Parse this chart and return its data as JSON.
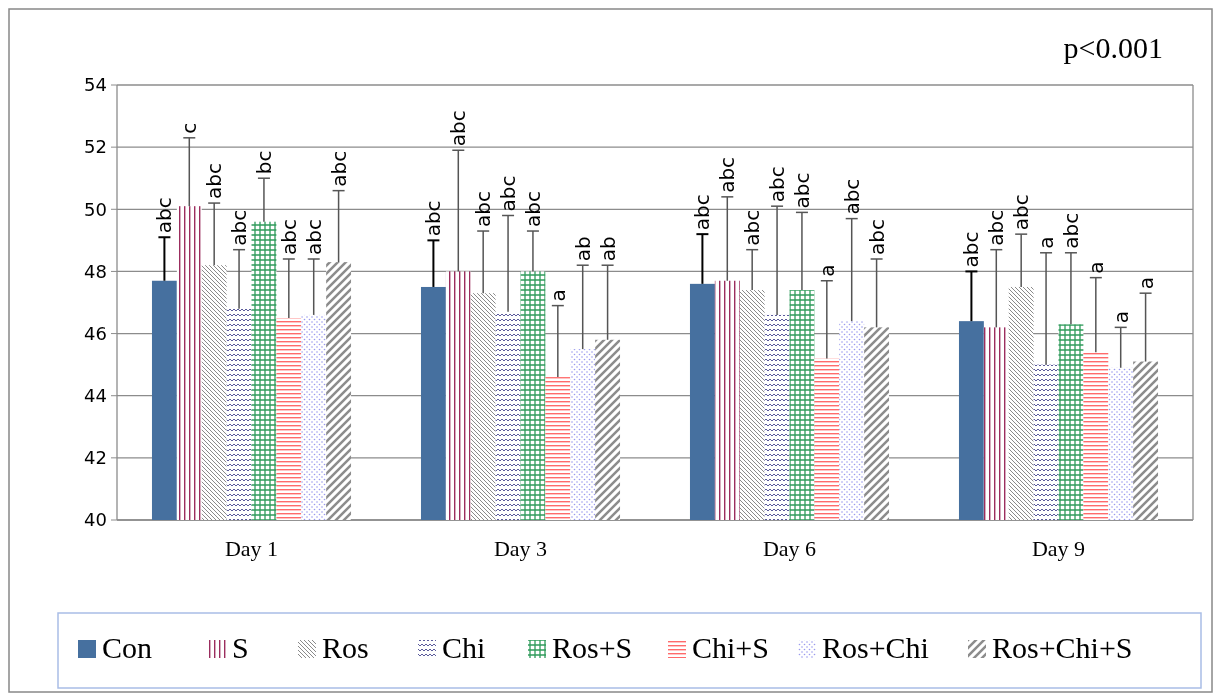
{
  "chart_data": {
    "type": "bar",
    "annotations": [
      "abc",
      "abc",
      "abc",
      "abc",
      "c",
      "abc",
      "abc",
      "abc",
      "abc",
      "abc",
      "abc",
      "abc",
      "abc",
      "abc",
      "abc",
      "a",
      "bc",
      "abc",
      "abc",
      "abc",
      "abc",
      "a",
      "a",
      "a",
      "abc",
      "ab",
      "abc",
      "a",
      "abc",
      "ab",
      "abc",
      "a",
      "p<0.001"
    ],
    "categories": [
      "Day 1",
      "Day 3",
      "Day 6",
      "Day 9"
    ],
    "series": [
      {
        "name": "Con",
        "color": "#46709f",
        "values": [
          47.7,
          47.5,
          47.6,
          46.4
        ],
        "errors": [
          [
            47.7,
            49.1
          ],
          [
            47.5,
            49.0
          ],
          [
            47.6,
            49.2
          ],
          [
            46.4,
            48.0
          ]
        ]
      },
      {
        "name": "S",
        "color": "#9b2d5e",
        "values": [
          50.1,
          48.0,
          47.7,
          46.2
        ],
        "errors": [
          [
            50.1,
            52.3
          ],
          [
            48.0,
            51.9
          ],
          [
            47.7,
            50.4
          ],
          [
            46.2,
            48.7
          ]
        ]
      },
      {
        "name": "Ros",
        "color": "#8a8a8a",
        "values": [
          48.2,
          47.3,
          47.4,
          47.5
        ],
        "errors": [
          [
            48.2,
            50.2
          ],
          [
            47.3,
            49.3
          ],
          [
            47.4,
            48.7
          ],
          [
            47.5,
            49.2
          ]
        ]
      },
      {
        "name": "Chi",
        "color": "#5b5b9b",
        "values": [
          46.8,
          46.7,
          46.6,
          45.0
        ],
        "errors": [
          [
            46.8,
            48.7
          ],
          [
            46.7,
            49.8
          ],
          [
            46.6,
            50.1
          ],
          [
            45.0,
            48.6
          ]
        ]
      },
      {
        "name": "Ros+S",
        "color": "#2e9a5a",
        "values": [
          49.6,
          48.0,
          47.4,
          46.3
        ],
        "errors": [
          [
            49.6,
            51.0
          ],
          [
            48.0,
            49.3
          ],
          [
            47.4,
            49.9
          ],
          [
            46.3,
            48.6
          ]
        ]
      },
      {
        "name": "Chi+S",
        "color": "#ff6b6b",
        "values": [
          46.5,
          44.6,
          45.2,
          45.4
        ],
        "errors": [
          [
            46.5,
            48.4
          ],
          [
            44.6,
            46.9
          ],
          [
            45.2,
            47.7
          ],
          [
            45.4,
            47.8
          ]
        ]
      },
      {
        "name": "Ros+Chi",
        "color": "#9a9aee",
        "values": [
          46.6,
          45.5,
          46.4,
          44.9
        ],
        "errors": [
          [
            46.6,
            48.4
          ],
          [
            45.5,
            48.2
          ],
          [
            46.4,
            49.7
          ],
          [
            44.9,
            46.2
          ]
        ]
      },
      {
        "name": "Ros+Chi+S",
        "color": "#8c8c8c",
        "values": [
          48.3,
          45.8,
          46.2,
          45.1
        ],
        "errors": [
          [
            48.3,
            50.6
          ],
          [
            45.8,
            48.2
          ],
          [
            46.2,
            48.4
          ],
          [
            45.1,
            47.3
          ]
        ]
      }
    ],
    "ylim": [
      40,
      54
    ],
    "yticks": [
      40,
      42,
      44,
      46,
      48,
      50,
      52,
      54
    ],
    "grid": "y",
    "legend": "bottom"
  }
}
